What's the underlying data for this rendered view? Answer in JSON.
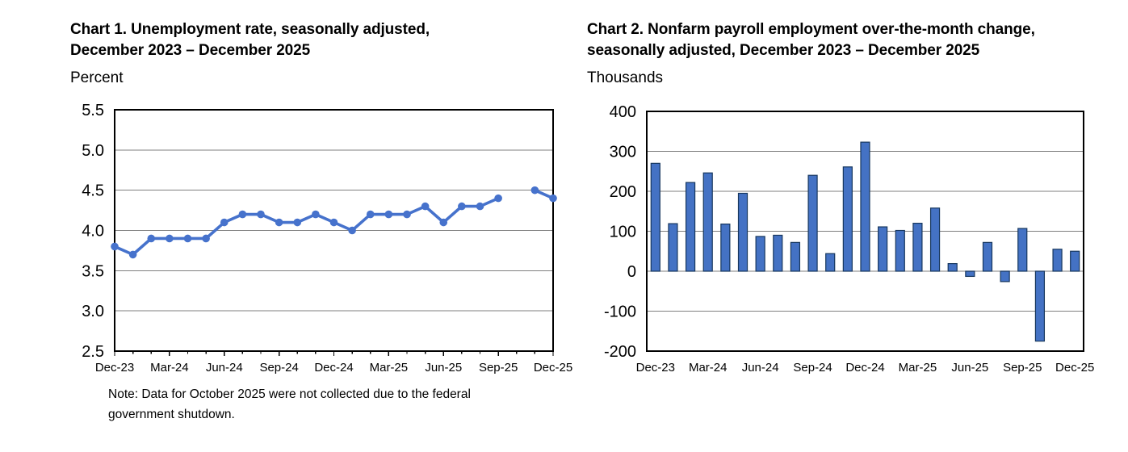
{
  "page": {
    "background": "#ffffff"
  },
  "chart1": {
    "title_line1": "Chart 1. Unemployment rate, seasonally adjusted,",
    "title_line2": "December 2023 – December 2025",
    "unit": "Percent",
    "note_line1": "Note: Data for October 2025 were not collected due to the federal",
    "note_line2": "government shutdown."
  },
  "chart2": {
    "title_line1": "Chart 2. Nonfarm payroll employment over-the-month change,",
    "title_line2": "seasonally adjusted, December 2023 – December 2025",
    "unit": "Thousands"
  },
  "chart_data": [
    {
      "type": "line",
      "title": "Chart 1. Unemployment rate, seasonally adjusted, December 2023 – December 2025",
      "ylabel": "Percent",
      "xlabel": "",
      "categories": [
        "Dec-23",
        "Jan-24",
        "Feb-24",
        "Mar-24",
        "Apr-24",
        "May-24",
        "Jun-24",
        "Jul-24",
        "Aug-24",
        "Sep-24",
        "Oct-24",
        "Nov-24",
        "Dec-24",
        "Jan-25",
        "Feb-25",
        "Mar-25",
        "Apr-25",
        "May-25",
        "Jun-25",
        "Jul-25",
        "Aug-25",
        "Sep-25",
        "Oct-25",
        "Nov-25",
        "Dec-25"
      ],
      "values": [
        3.8,
        3.7,
        3.9,
        3.9,
        3.9,
        3.9,
        4.1,
        4.2,
        4.2,
        4.1,
        4.1,
        4.2,
        4.1,
        4.0,
        4.2,
        4.2,
        4.2,
        4.3,
        4.1,
        4.3,
        4.3,
        4.4,
        null,
        4.5,
        4.4
      ],
      "ylim": [
        2.5,
        5.5
      ],
      "ytick_labels": [
        "5.5",
        "5.0",
        "4.5",
        "4.0",
        "3.5",
        "3.0",
        "2.5"
      ],
      "xtick_labels": [
        "Dec-23",
        "Mar-24",
        "Jun-24",
        "Sep-24",
        "Dec-24",
        "Mar-25",
        "Jun-25",
        "Sep-25",
        "Dec-25"
      ],
      "xtick_every_months": 3,
      "grid": true,
      "legend": "none",
      "line_color": "#4672CC",
      "missing_data_months": [
        "Oct-25"
      ],
      "annotation": "Note: Data for October 2025 were not collected due to the federal government shutdown."
    },
    {
      "type": "bar",
      "title": "Chart 2. Nonfarm payroll employment over-the-month change, seasonally adjusted, December 2023 – December 2025",
      "ylabel": "Thousands",
      "xlabel": "",
      "categories": [
        "Dec-23",
        "Jan-24",
        "Feb-24",
        "Mar-24",
        "Apr-24",
        "May-24",
        "Jun-24",
        "Jul-24",
        "Aug-24",
        "Sep-24",
        "Oct-24",
        "Nov-24",
        "Dec-24",
        "Jan-25",
        "Feb-25",
        "Mar-25",
        "Apr-25",
        "May-25",
        "Jun-25",
        "Jul-25",
        "Aug-25",
        "Sep-25",
        "Oct-25",
        "Nov-25",
        "Dec-25"
      ],
      "values": [
        270,
        119,
        222,
        246,
        118,
        195,
        87,
        90,
        72,
        240,
        44,
        261,
        323,
        111,
        102,
        120,
        158,
        19,
        -13,
        72,
        -26,
        107,
        -175,
        55,
        50
      ],
      "ylim": [
        -200,
        400
      ],
      "ytick_labels": [
        "400",
        "300",
        "200",
        "100",
        "0",
        "-100",
        "-200"
      ],
      "xtick_labels": [
        "Dec-23",
        "Mar-24",
        "Jun-24",
        "Sep-24",
        "Dec-24",
        "Mar-25",
        "Jun-25",
        "Sep-25",
        "Dec-25"
      ],
      "xtick_every_months": 3,
      "grid": true,
      "legend": "none",
      "bar_color": "#4472C4",
      "bar_border_color": "#17375E"
    }
  ],
  "style": {
    "grid_color": "#7F7F7F",
    "frame_color": "#000000",
    "text_color": "#000000"
  }
}
